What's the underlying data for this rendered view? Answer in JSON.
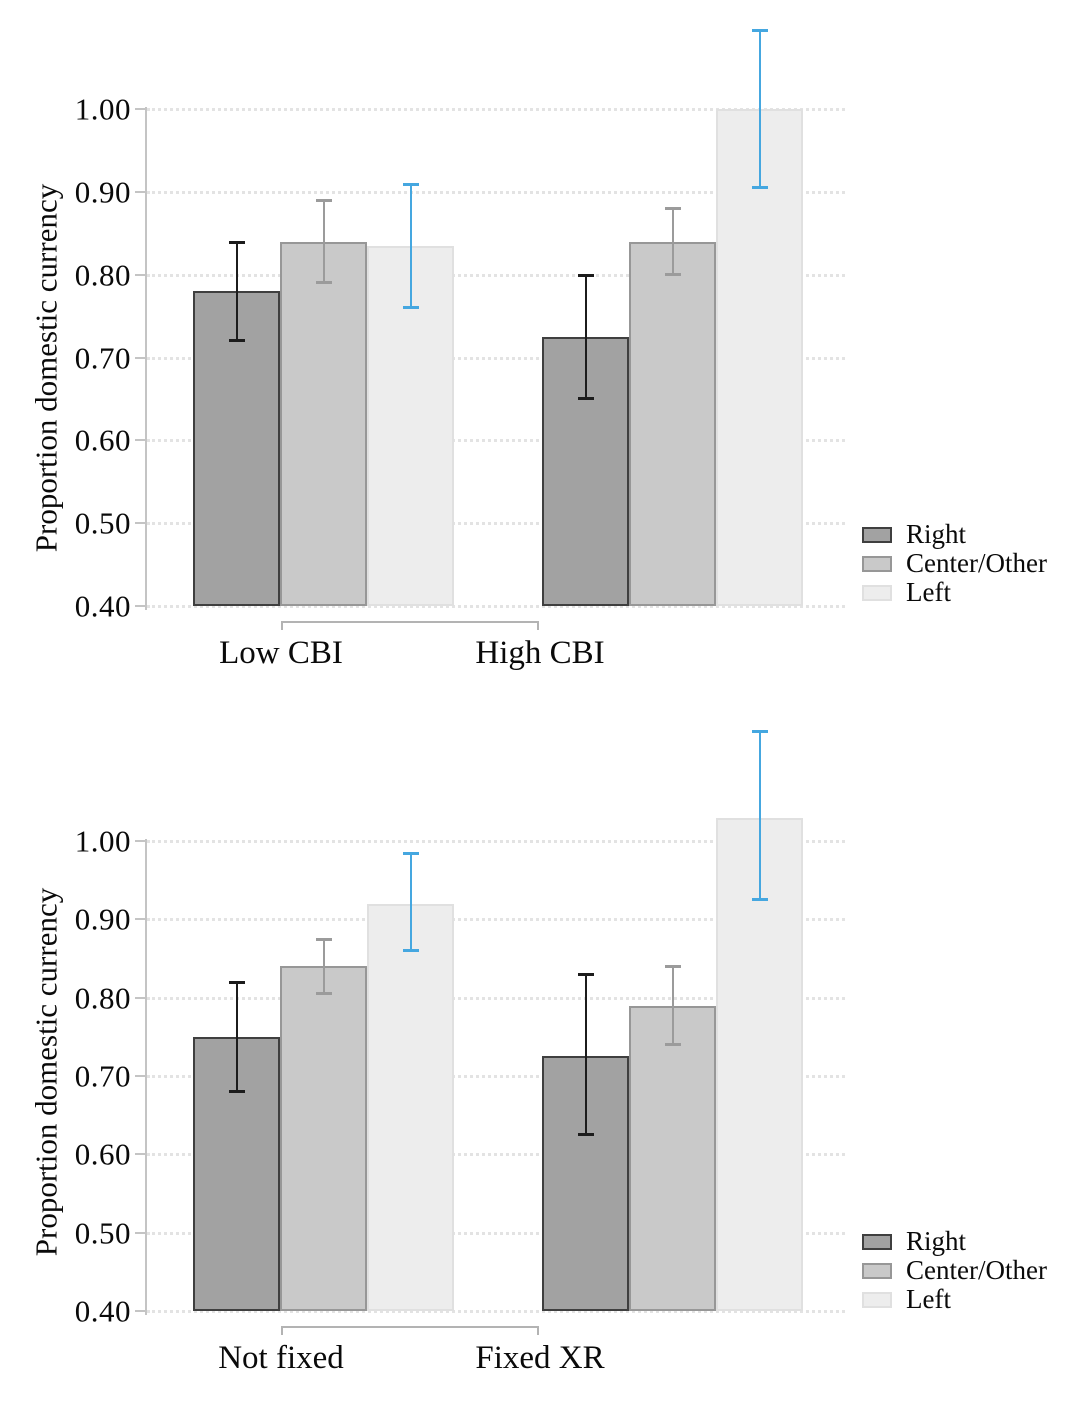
{
  "figure": {
    "background": "#ffffff",
    "colors": {
      "axis": "#c4c4c4",
      "grid": "#e3e3e3",
      "bracket": "#b3b3b3",
      "text": "#0a0a0a",
      "right_fill": "#a2a2a2",
      "right_border": "#3f3f3f",
      "right_error": "#1c1c1c",
      "center_fill": "#c9c9c9",
      "center_border": "#979797",
      "center_error": "#9b9b9b",
      "left_fill": "#ededed",
      "left_border": "#e0e0e0",
      "left_error": "#45a7e0"
    }
  },
  "chart_data": [
    {
      "type": "bar",
      "panel": "top",
      "title": "",
      "xlabel": "",
      "ylabel": "Proportion domestic currency",
      "ylim": [
        0.4,
        1.0
      ],
      "yticks": [
        1.0,
        0.9,
        0.8,
        0.7,
        0.6,
        0.5,
        0.4
      ],
      "yticklabels": [
        "1.00",
        "0.90",
        "0.80",
        "0.70",
        "0.60",
        "0.50",
        "0.40"
      ],
      "grid": "horizontal-dotted",
      "legend_position": "right-middle",
      "categories": [
        "Low CBI",
        "High CBI"
      ],
      "series": [
        {
          "name": "Right",
          "fill": "#a2a2a2",
          "border": "#3f3f3f",
          "error_color": "#1c1c1c",
          "values": [
            0.78,
            0.725
          ],
          "ci_low": [
            0.72,
            0.65
          ],
          "ci_high": [
            0.84,
            0.8
          ]
        },
        {
          "name": "Center/Other",
          "fill": "#c9c9c9",
          "border": "#979797",
          "error_color": "#9b9b9b",
          "values": [
            0.84,
            0.84
          ],
          "ci_low": [
            0.79,
            0.8
          ],
          "ci_high": [
            0.89,
            0.88
          ]
        },
        {
          "name": "Left",
          "fill": "#ededed",
          "border": "#e0e0e0",
          "error_color": "#45a7e0",
          "values": [
            0.835,
            1.0
          ],
          "ci_low": [
            0.76,
            0.905
          ],
          "ci_high": [
            0.91,
            1.095
          ]
        }
      ]
    },
    {
      "type": "bar",
      "panel": "bottom",
      "title": "",
      "xlabel": "",
      "ylabel": "Proportion domestic currency",
      "ylim": [
        0.4,
        1.0
      ],
      "yticks": [
        1.0,
        0.9,
        0.8,
        0.7,
        0.6,
        0.5,
        0.4
      ],
      "yticklabels": [
        "1.00",
        "0.90",
        "0.80",
        "0.70",
        "0.60",
        "0.50",
        "0.40"
      ],
      "grid": "horizontal-dotted",
      "legend_position": "right-middle",
      "categories": [
        "Not fixed",
        "Fixed XR"
      ],
      "series": [
        {
          "name": "Right",
          "fill": "#a2a2a2",
          "border": "#3f3f3f",
          "error_color": "#1c1c1c",
          "values": [
            0.75,
            0.725
          ],
          "ci_low": [
            0.68,
            0.625
          ],
          "ci_high": [
            0.82,
            0.83
          ]
        },
        {
          "name": "Center/Other",
          "fill": "#c9c9c9",
          "border": "#979797",
          "error_color": "#9b9b9b",
          "values": [
            0.84,
            0.79
          ],
          "ci_low": [
            0.805,
            0.74
          ],
          "ci_high": [
            0.875,
            0.84
          ]
        },
        {
          "name": "Left",
          "fill": "#ededed",
          "border": "#e0e0e0",
          "error_color": "#45a7e0",
          "values": [
            0.92,
            1.03
          ],
          "ci_low": [
            0.86,
            0.925
          ],
          "ci_high": [
            0.985,
            1.14
          ]
        }
      ]
    }
  ]
}
